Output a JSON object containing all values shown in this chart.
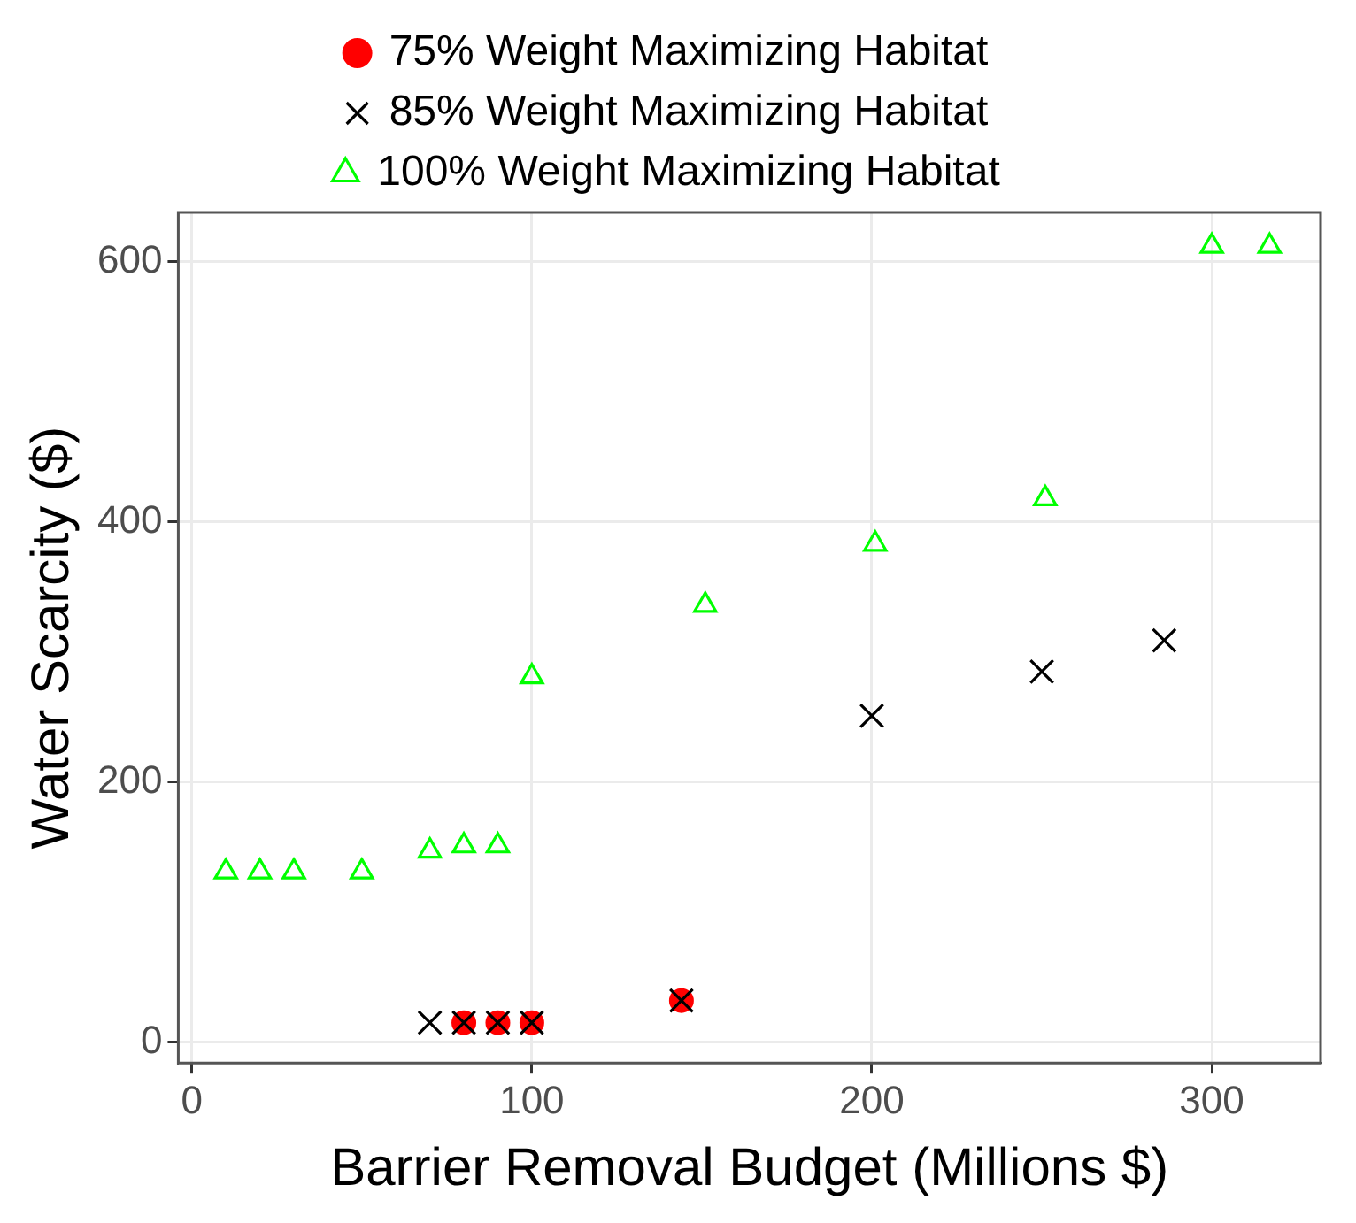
{
  "chart_data": {
    "type": "scatter",
    "xlabel": "Barrier Removal Budget (Millions $)",
    "ylabel": "Water Scarcity ($)",
    "xlim": [
      -4,
      332
    ],
    "ylim": [
      -16,
      638
    ],
    "xticks": [
      0,
      100,
      200,
      300
    ],
    "yticks": [
      0,
      200,
      400,
      600
    ],
    "grid": true,
    "legend": "top",
    "series": [
      {
        "name": "75% Weight Maximizing Habitat",
        "color": "#ff0000",
        "marker": "circle",
        "x": [
          80,
          90,
          100,
          144
        ],
        "values": [
          15,
          15,
          15,
          32
        ]
      },
      {
        "name": "85% Weight Maximizing Habitat",
        "color": "#000000",
        "marker": "cross",
        "x": [
          70,
          80,
          90,
          100,
          144,
          200,
          250,
          286
        ],
        "values": [
          15,
          15,
          15,
          15,
          32,
          251,
          285,
          309
        ]
      },
      {
        "name": "100% Weight Maximizing Habitat",
        "color": "#00ff00",
        "marker": "triangle",
        "x": [
          10,
          20,
          30,
          50,
          70,
          80,
          90,
          100,
          151,
          201,
          251,
          300,
          317
        ],
        "values": [
          131,
          131,
          131,
          131,
          147,
          151,
          151,
          281,
          336,
          383,
          418,
          612,
          612
        ]
      }
    ]
  }
}
